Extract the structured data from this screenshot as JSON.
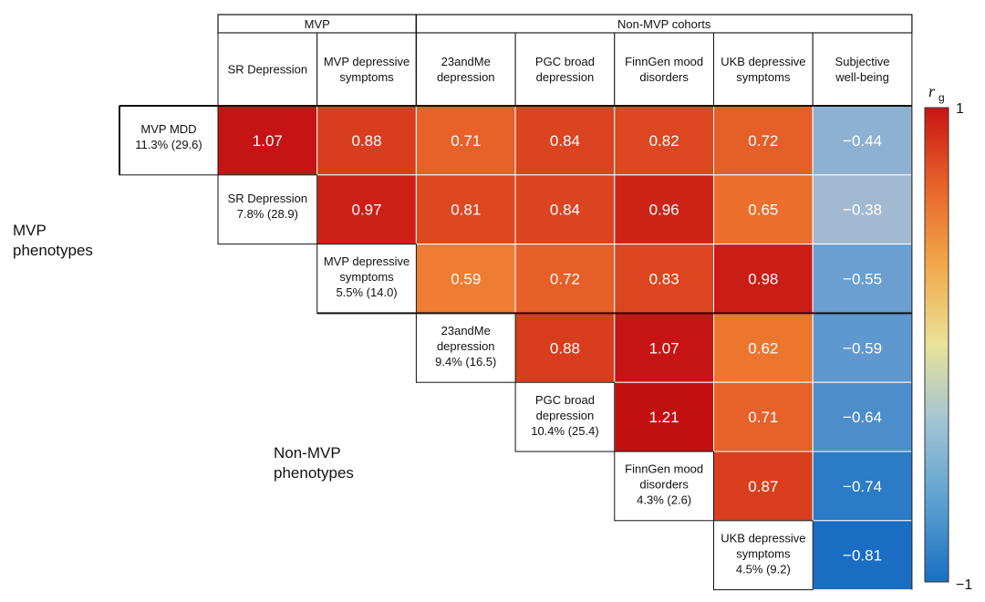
{
  "chart_data": {
    "type": "heatmap",
    "title": "",
    "column_groups": [
      {
        "name": "MVP",
        "span": 2
      },
      {
        "name": "Non-MVP cohorts",
        "span": 5
      }
    ],
    "columns": [
      [
        "SR Depression"
      ],
      [
        "MVP depressive",
        "symptoms"
      ],
      [
        "23andMe",
        "depression"
      ],
      [
        "PGC broad",
        "depression"
      ],
      [
        "FinnGen mood",
        "disorders"
      ],
      [
        "UKB depressive",
        "symptoms"
      ],
      [
        "Subjective",
        "well-being"
      ]
    ],
    "rows": [
      [
        "MVP MDD",
        "11.3% (29.6)"
      ],
      [
        "SR Depression",
        "7.8% (28.9)"
      ],
      [
        "MVP depressive",
        "symptoms",
        "5.5% (14.0)"
      ],
      [
        "23andMe",
        "depression",
        "9.4% (16.5)"
      ],
      [
        "PGC broad",
        "depression",
        "10.4% (25.4)"
      ],
      [
        "FinnGen mood",
        "disorders",
        "4.3% (2.6)"
      ],
      [
        "UKB depressive",
        "symptoms",
        "4.5% (9.2)"
      ]
    ],
    "values": [
      [
        1.07,
        0.88,
        0.71,
        0.84,
        0.82,
        0.72,
        -0.44
      ],
      [
        null,
        0.97,
        0.81,
        0.84,
        0.96,
        0.65,
        -0.38
      ],
      [
        null,
        null,
        0.59,
        0.72,
        0.83,
        0.98,
        -0.55
      ],
      [
        null,
        null,
        null,
        0.88,
        1.07,
        0.62,
        -0.59
      ],
      [
        null,
        null,
        null,
        null,
        1.21,
        0.71,
        -0.64
      ],
      [
        null,
        null,
        null,
        null,
        null,
        0.87,
        -0.74
      ],
      [
        null,
        null,
        null,
        null,
        null,
        null,
        -0.81
      ]
    ],
    "value_labels": [
      [
        "1.07",
        "0.88",
        "0.71",
        "0.84",
        "0.82",
        "0.72",
        "−0.44"
      ],
      [
        null,
        "0.97",
        "0.81",
        "0.84",
        "0.96",
        "0.65",
        "−0.38"
      ],
      [
        null,
        null,
        "0.59",
        "0.72",
        "0.83",
        "0.98",
        "−0.55"
      ],
      [
        null,
        null,
        null,
        "0.88",
        "1.07",
        "0.62",
        "−0.59"
      ],
      [
        null,
        null,
        null,
        null,
        "1.21",
        "0.71",
        "−0.64"
      ],
      [
        null,
        null,
        null,
        null,
        null,
        "0.87",
        "−0.74"
      ],
      [
        null,
        null,
        null,
        null,
        null,
        null,
        "−0.81"
      ]
    ],
    "side_labels": {
      "mvp": [
        "MVP",
        "phenotypes"
      ],
      "non_mvp": [
        "Non-MVP",
        "phenotypes"
      ]
    },
    "colorbar": {
      "label": "r",
      "subscript": "g",
      "range": [
        -1,
        1
      ],
      "max_label": "1",
      "min_label": "−1",
      "stops": [
        "#1a6ec2",
        "#5aa0d0",
        "#9fc3d6",
        "#e9e29a",
        "#f2a94a",
        "#e8642a",
        "#c81414"
      ]
    }
  }
}
